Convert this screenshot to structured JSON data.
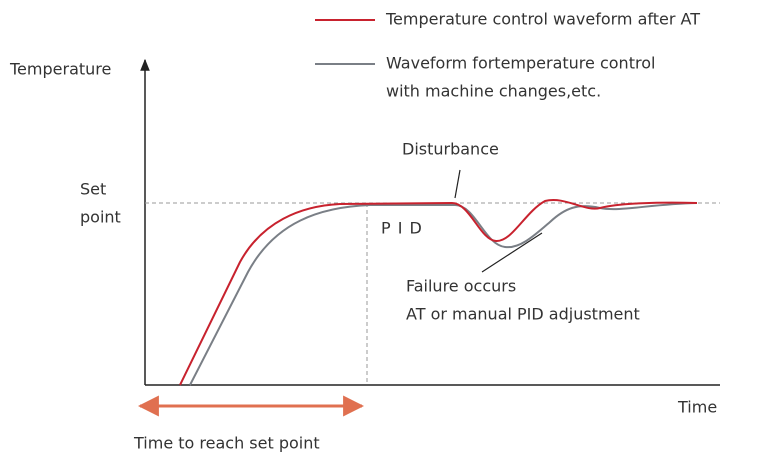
{
  "legend": {
    "items": [
      {
        "lines": [
          "Temperature control waveform after AT"
        ]
      },
      {
        "lines": [
          "Waveform fortemperature control",
          "with machine changes,etc."
        ]
      }
    ]
  },
  "axes": {
    "y_label": "Temperature",
    "x_label": "Time"
  },
  "set_point": {
    "lines": [
      "Set",
      "point"
    ]
  },
  "annotations": {
    "pid": "P I D",
    "disturbance": "Disturbance",
    "failure": [
      "Failure occurs",
      "AT or manual PID adjustment"
    ],
    "time_to_reach": "Time to reach set point"
  }
}
